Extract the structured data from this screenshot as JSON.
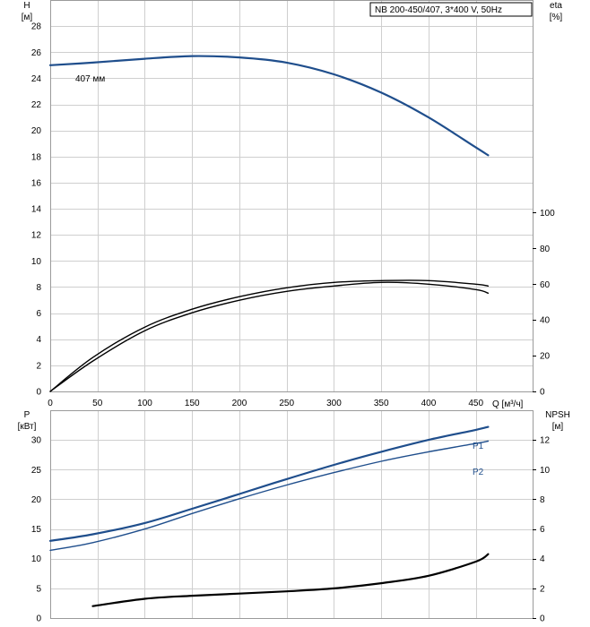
{
  "legend": {
    "text": "NB 200-450/407, 3*400 V, 50Hz"
  },
  "colors": {
    "blue": "#1f4e8c",
    "black": "#000000",
    "grid": "#cfcfcf"
  },
  "chart_data": [
    {
      "type": "line",
      "panel": "head-efficiency",
      "xlabel": "Q [м³/ч]",
      "x_ticks": [
        0,
        50,
        100,
        150,
        200,
        250,
        300,
        350,
        400,
        450
      ],
      "xlim": [
        0,
        510
      ],
      "left_axis": {
        "label_top": "H",
        "label_unit": "[м]",
        "ylim": [
          0,
          30
        ],
        "ticks": [
          0,
          2,
          4,
          6,
          8,
          10,
          12,
          14,
          16,
          18,
          20,
          22,
          24,
          26,
          28
        ]
      },
      "right_axis": {
        "label_top": "eta",
        "label_unit": "[%]",
        "ylim": [
          0,
          219
        ],
        "ticks": [
          0,
          20,
          40,
          60,
          80,
          100
        ]
      },
      "series": [
        {
          "name": "407 мм",
          "axis": "left",
          "color": "#1f4e8c",
          "x": [
            0,
            45,
            100,
            150,
            200,
            250,
            300,
            350,
            400,
            450,
            463
          ],
          "y": [
            25.0,
            25.2,
            25.5,
            25.7,
            25.6,
            25.2,
            24.3,
            22.9,
            21.0,
            18.7,
            18.1
          ]
        },
        {
          "axis": "right",
          "color": "#000000",
          "x": [
            0,
            45,
            100,
            150,
            200,
            250,
            300,
            350,
            400,
            450,
            463
          ],
          "y": [
            0,
            17,
            34,
            44,
            51,
            56,
            59,
            61,
            60,
            57,
            55
          ]
        },
        {
          "axis": "right",
          "color": "#000000",
          "x": [
            0,
            45,
            100,
            150,
            200,
            250,
            300,
            350,
            400,
            450,
            463
          ],
          "y": [
            0,
            19,
            36,
            46,
            53,
            58,
            61,
            62,
            62,
            60,
            59
          ]
        }
      ]
    },
    {
      "type": "line",
      "panel": "power-npsh",
      "x_ticks": [
        0,
        50,
        100,
        150,
        200,
        250,
        300,
        350,
        400,
        450
      ],
      "xlim": [
        0,
        510
      ],
      "left_axis": {
        "label_top": "P",
        "label_unit": "[кВт]",
        "ylim": [
          0,
          35
        ],
        "ticks": [
          0,
          5,
          10,
          15,
          20,
          25,
          30
        ]
      },
      "right_axis": {
        "label_top": "NPSH",
        "label_unit": "[м]",
        "ylim": [
          0,
          14
        ],
        "ticks": [
          0,
          2,
          4,
          6,
          8,
          10,
          12
        ]
      },
      "series": [
        {
          "name": "P1",
          "axis": "left",
          "color": "#1f4e8c",
          "x": [
            0,
            45,
            100,
            150,
            200,
            250,
            300,
            350,
            400,
            450,
            463
          ],
          "y": [
            13.0,
            14.1,
            16.0,
            18.4,
            20.9,
            23.4,
            25.8,
            28.0,
            30.0,
            31.7,
            32.2
          ]
        },
        {
          "name": "P2",
          "axis": "left",
          "color": "#1f4e8c",
          "x": [
            0,
            45,
            100,
            150,
            200,
            250,
            300,
            350,
            400,
            450,
            463
          ],
          "y": [
            11.4,
            12.7,
            15.0,
            17.6,
            20.1,
            22.4,
            24.5,
            26.4,
            28.0,
            29.4,
            29.8
          ]
        },
        {
          "axis": "right",
          "color": "#000000",
          "x": [
            45,
            100,
            150,
            200,
            250,
            300,
            350,
            400,
            450,
            463
          ],
          "y": [
            0.8,
            1.3,
            1.5,
            1.65,
            1.8,
            2.0,
            2.35,
            2.85,
            3.8,
            4.3
          ]
        }
      ]
    }
  ]
}
